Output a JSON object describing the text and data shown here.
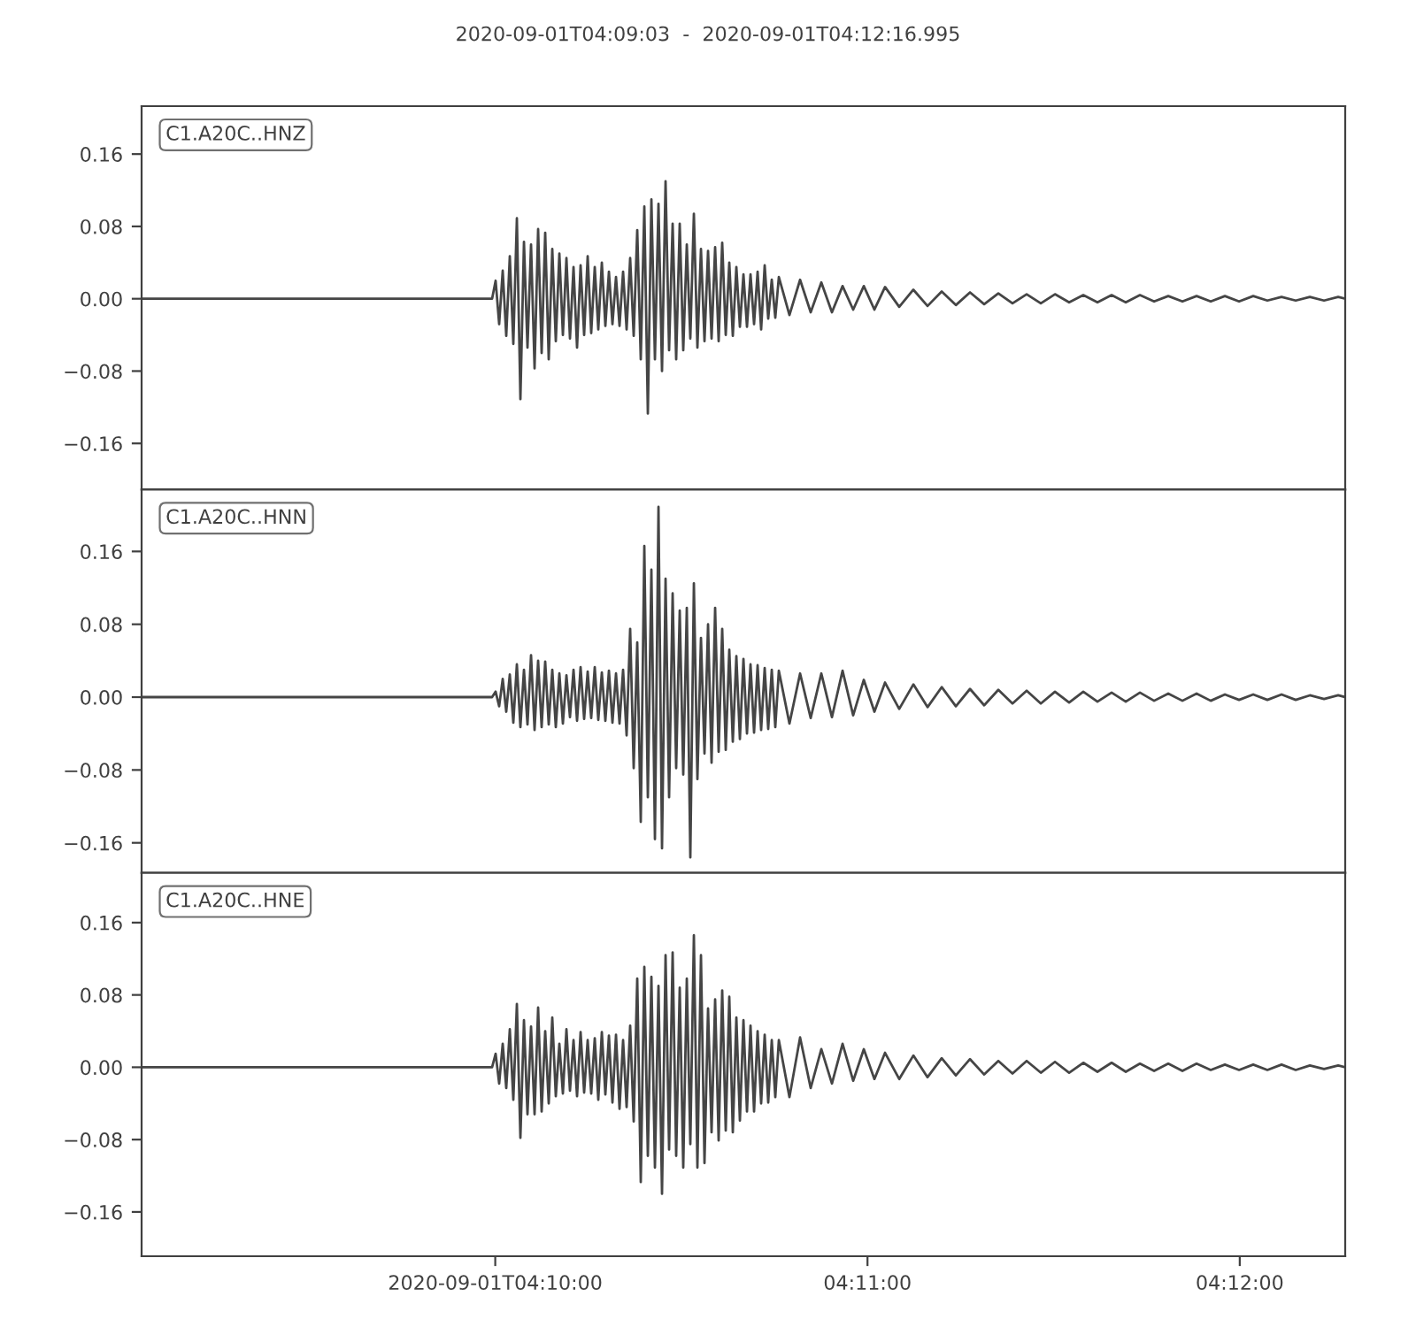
{
  "chart_data": [
    {
      "type": "line",
      "title": "2020-09-01T04:09:03  -  2020-09-01T04:12:16.995",
      "annotations": [
        "C1.A20C..HNZ"
      ],
      "tick_labels": "y",
      "xlim": [
        4.150833,
        4.204721
      ],
      "ylim": [
        -0.211,
        0.213
      ],
      "yticks": [
        {
          "value": -0.16,
          "label": "−0.16"
        },
        {
          "value": -0.08,
          "label": "−0.08"
        },
        {
          "value": 0.0,
          "label": "0.00"
        },
        {
          "value": 0.08,
          "label": "0.08"
        },
        {
          "value": 0.16,
          "label": "0.16"
        }
      ],
      "x": [
        4.150833,
        4.166525,
        4.166684,
        4.166842,
        4.167001,
        4.167159,
        4.167318,
        4.167476,
        4.167635,
        4.167793,
        4.167952,
        4.16811,
        4.168269,
        4.168427,
        4.168586,
        4.168744,
        4.168903,
        4.169061,
        4.16922,
        4.169378,
        4.169537,
        4.169695,
        4.169854,
        4.170012,
        4.170171,
        4.170329,
        4.170488,
        4.170646,
        4.170805,
        4.170963,
        4.171122,
        4.17128,
        4.171439,
        4.171597,
        4.171756,
        4.171914,
        4.172073,
        4.172231,
        4.17239,
        4.172548,
        4.172707,
        4.172865,
        4.173024,
        4.173182,
        4.173341,
        4.173499,
        4.173658,
        4.173816,
        4.173975,
        4.174133,
        4.174292,
        4.17445,
        4.174609,
        4.174767,
        4.174926,
        4.175084,
        4.175243,
        4.175401,
        4.17556,
        4.175718,
        4.175877,
        4.176035,
        4.176194,
        4.176352,
        4.176511,
        4.176669,
        4.176828,
        4.176986,
        4.177145,
        4.177303,
        4.177462,
        4.17762,
        4.177779,
        4.177937,
        4.178096,
        4.178254,
        4.178413,
        4.178571,
        4.17873,
        4.178888,
        4.179047,
        4.179205,
        4.179364,
        4.179839,
        4.180315,
        4.18079,
        4.181266,
        4.181741,
        4.182217,
        4.182692,
        4.183168,
        4.183643,
        4.184119,
        4.184753,
        4.185387,
        4.186021,
        4.186655,
        4.187289,
        4.187923,
        4.188557,
        4.189191,
        4.189825,
        4.190459,
        4.191093,
        4.191727,
        4.192361,
        4.192995,
        4.193629,
        4.194263,
        4.194897,
        4.195531,
        4.196165,
        4.196799,
        4.197433,
        4.198067,
        4.198701,
        4.199335,
        4.199969,
        4.200603,
        4.201237,
        4.201871,
        4.202505,
        4.203139,
        4.203773,
        4.204407,
        4.204721
      ],
      "series": [
        {
          "color": "#454545",
          "values": [
            0,
            0,
            0.02,
            -0.028,
            0.031,
            -0.041,
            0.047,
            -0.05,
            0.089,
            -0.111,
            0.063,
            -0.054,
            0.06,
            -0.077,
            0.077,
            -0.06,
            0.073,
            -0.067,
            0.055,
            -0.047,
            0.05,
            -0.04,
            0.045,
            -0.044,
            0.035,
            -0.054,
            0.037,
            -0.04,
            0.047,
            -0.038,
            0.035,
            -0.034,
            0.04,
            -0.03,
            0.03,
            -0.028,
            0.024,
            -0.03,
            0.03,
            -0.034,
            0.045,
            -0.041,
            0.076,
            -0.067,
            0.102,
            -0.127,
            0.11,
            -0.067,
            0.105,
            -0.08,
            0.13,
            -0.057,
            0.083,
            -0.067,
            0.083,
            -0.057,
            0.06,
            -0.044,
            0.094,
            -0.054,
            0.055,
            -0.047,
            0.053,
            -0.044,
            0.057,
            -0.047,
            0.062,
            -0.04,
            0.04,
            -0.041,
            0.035,
            -0.031,
            0.027,
            -0.031,
            0.027,
            -0.028,
            0.03,
            -0.034,
            0.037,
            -0.022,
            0.021,
            -0.021,
            0.024,
            -0.018,
            0.021,
            -0.015,
            0.018,
            -0.015,
            0.014,
            -0.012,
            0.014,
            -0.012,
            0.013,
            -0.009,
            0.01,
            -0.008,
            0.008,
            -0.007,
            0.007,
            -0.006,
            0.006,
            -0.005,
            0.005,
            -0.005,
            0.005,
            -0.004,
            0.004,
            -0.004,
            0.004,
            -0.004,
            0.004,
            -0.003,
            0.003,
            -0.003,
            0.003,
            -0.003,
            0.003,
            -0.003,
            0.003,
            -0.002,
            0.002,
            -0.002,
            0.002,
            -0.002,
            0.002,
            0
          ]
        }
      ]
    },
    {
      "type": "line",
      "annotations": [
        "C1.A20C..HNN"
      ],
      "tick_labels": "y",
      "xlim": [
        4.150833,
        4.204721
      ],
      "ylim": [
        -0.193,
        0.228
      ],
      "yticks": [
        {
          "value": -0.16,
          "label": "−0.16"
        },
        {
          "value": -0.08,
          "label": "−0.08"
        },
        {
          "value": 0.0,
          "label": "0.00"
        },
        {
          "value": 0.08,
          "label": "0.08"
        },
        {
          "value": 0.16,
          "label": "0.16"
        }
      ],
      "x": [
        4.150833,
        4.166525,
        4.166684,
        4.166842,
        4.167001,
        4.167159,
        4.167318,
        4.167476,
        4.167635,
        4.167793,
        4.167952,
        4.16811,
        4.168269,
        4.168427,
        4.168586,
        4.168744,
        4.168903,
        4.169061,
        4.16922,
        4.169378,
        4.169537,
        4.169695,
        4.169854,
        4.170012,
        4.170171,
        4.170329,
        4.170488,
        4.170646,
        4.170805,
        4.170963,
        4.171122,
        4.17128,
        4.171439,
        4.171597,
        4.171756,
        4.171914,
        4.172073,
        4.172231,
        4.17239,
        4.172548,
        4.172707,
        4.172865,
        4.173024,
        4.173182,
        4.173341,
        4.173499,
        4.173658,
        4.173816,
        4.173975,
        4.174133,
        4.174292,
        4.17445,
        4.174609,
        4.174767,
        4.174926,
        4.175084,
        4.175243,
        4.175401,
        4.17556,
        4.175718,
        4.175877,
        4.176035,
        4.176194,
        4.176352,
        4.176511,
        4.176669,
        4.176828,
        4.176986,
        4.177145,
        4.177303,
        4.177462,
        4.17762,
        4.177779,
        4.177937,
        4.178096,
        4.178254,
        4.178413,
        4.178571,
        4.17873,
        4.178888,
        4.179047,
        4.179205,
        4.179364,
        4.179839,
        4.180315,
        4.18079,
        4.181266,
        4.181741,
        4.182217,
        4.182692,
        4.183168,
        4.183643,
        4.184119,
        4.184753,
        4.185387,
        4.186021,
        4.186655,
        4.187289,
        4.187923,
        4.188557,
        4.189191,
        4.189825,
        4.190459,
        4.191093,
        4.191727,
        4.192361,
        4.192995,
        4.193629,
        4.194263,
        4.194897,
        4.195531,
        4.196165,
        4.196799,
        4.197433,
        4.198067,
        4.198701,
        4.199335,
        4.199969,
        4.200603,
        4.201237,
        4.201871,
        4.202505,
        4.203139,
        4.203773,
        4.204407,
        4.204721
      ],
      "series": [
        {
          "color": "#454545",
          "values": [
            0,
            0,
            0.006,
            -0.01,
            0.02,
            -0.016,
            0.025,
            -0.028,
            0.036,
            -0.033,
            0.03,
            -0.03,
            0.046,
            -0.036,
            0.04,
            -0.033,
            0.039,
            -0.03,
            0.03,
            -0.033,
            0.026,
            -0.029,
            0.024,
            -0.022,
            0.03,
            -0.026,
            0.033,
            -0.024,
            0.028,
            -0.023,
            0.033,
            -0.025,
            0.027,
            -0.026,
            0.029,
            -0.028,
            0.026,
            -0.029,
            0.03,
            -0.042,
            0.075,
            -0.078,
            0.06,
            -0.137,
            0.166,
            -0.11,
            0.14,
            -0.156,
            0.209,
            -0.166,
            0.13,
            -0.11,
            0.114,
            -0.078,
            0.095,
            -0.085,
            0.098,
            -0.176,
            0.125,
            -0.09,
            0.065,
            -0.062,
            0.08,
            -0.072,
            0.098,
            -0.06,
            0.075,
            -0.058,
            0.052,
            -0.049,
            0.045,
            -0.046,
            0.042,
            -0.04,
            0.036,
            -0.039,
            0.035,
            -0.036,
            0.032,
            -0.035,
            0.03,
            -0.033,
            0.029,
            -0.029,
            0.026,
            -0.023,
            0.026,
            -0.022,
            0.029,
            -0.02,
            0.019,
            -0.016,
            0.016,
            -0.013,
            0.014,
            -0.011,
            0.011,
            -0.01,
            0.009,
            -0.009,
            0.008,
            -0.007,
            0.007,
            -0.007,
            0.006,
            -0.006,
            0.006,
            -0.005,
            0.005,
            -0.005,
            0.005,
            -0.004,
            0.004,
            -0.004,
            0.004,
            -0.004,
            0.003,
            -0.003,
            0.003,
            -0.003,
            0.003,
            -0.003,
            0.002,
            -0.002,
            0.002,
            0
          ]
        }
      ]
    },
    {
      "type": "line",
      "annotations": [
        "C1.A20C..HNE"
      ],
      "xlim": [
        4.150833,
        4.204721
      ],
      "xticks": [
        {
          "value": 4.166667,
          "label": "2020-09-01T04:10:00"
        },
        {
          "value": 4.183333,
          "label": "04:11:00"
        },
        {
          "value": 4.2,
          "label": "04:12:00"
        }
      ],
      "ylim": [
        -0.209,
        0.215
      ],
      "yticks": [
        {
          "value": -0.16,
          "label": "−0.16"
        },
        {
          "value": -0.08,
          "label": "−0.08"
        },
        {
          "value": 0.0,
          "label": "0.00"
        },
        {
          "value": 0.08,
          "label": "0.08"
        },
        {
          "value": 0.16,
          "label": "0.16"
        }
      ],
      "x": [
        4.150833,
        4.166525,
        4.166684,
        4.166842,
        4.167001,
        4.167159,
        4.167318,
        4.167476,
        4.167635,
        4.167793,
        4.167952,
        4.16811,
        4.168269,
        4.168427,
        4.168586,
        4.168744,
        4.168903,
        4.169061,
        4.16922,
        4.169378,
        4.169537,
        4.169695,
        4.169854,
        4.170012,
        4.170171,
        4.170329,
        4.170488,
        4.170646,
        4.170805,
        4.170963,
        4.171122,
        4.17128,
        4.171439,
        4.171597,
        4.171756,
        4.171914,
        4.172073,
        4.172231,
        4.17239,
        4.172548,
        4.172707,
        4.172865,
        4.173024,
        4.173182,
        4.173341,
        4.173499,
        4.173658,
        4.173816,
        4.173975,
        4.174133,
        4.174292,
        4.17445,
        4.174609,
        4.174767,
        4.174926,
        4.175084,
        4.175243,
        4.175401,
        4.17556,
        4.175718,
        4.175877,
        4.176035,
        4.176194,
        4.176352,
        4.176511,
        4.176669,
        4.176828,
        4.176986,
        4.177145,
        4.177303,
        4.177462,
        4.17762,
        4.177779,
        4.177937,
        4.178096,
        4.178254,
        4.178413,
        4.178571,
        4.17873,
        4.178888,
        4.179047,
        4.179205,
        4.179364,
        4.179839,
        4.180315,
        4.18079,
        4.181266,
        4.181741,
        4.182217,
        4.182692,
        4.183168,
        4.183643,
        4.184119,
        4.184753,
        4.185387,
        4.186021,
        4.186655,
        4.187289,
        4.187923,
        4.188557,
        4.189191,
        4.189825,
        4.190459,
        4.191093,
        4.191727,
        4.192361,
        4.192995,
        4.193629,
        4.194263,
        4.194897,
        4.195531,
        4.196165,
        4.196799,
        4.197433,
        4.198067,
        4.198701,
        4.199335,
        4.199969,
        4.200603,
        4.201237,
        4.201871,
        4.202505,
        4.203139,
        4.203773,
        4.204407,
        4.204721
      ],
      "series": [
        {
          "color": "#454545",
          "values": [
            0,
            0,
            0.015,
            -0.018,
            0.026,
            -0.023,
            0.042,
            -0.036,
            0.07,
            -0.078,
            0.052,
            -0.052,
            0.045,
            -0.052,
            0.066,
            -0.049,
            0.04,
            -0.04,
            0.055,
            -0.032,
            0.026,
            -0.029,
            0.042,
            -0.026,
            0.03,
            -0.032,
            0.039,
            -0.028,
            0.03,
            -0.029,
            0.032,
            -0.036,
            0.039,
            -0.03,
            0.035,
            -0.039,
            0.036,
            -0.046,
            0.03,
            -0.044,
            0.046,
            -0.06,
            0.098,
            -0.127,
            0.111,
            -0.098,
            0.1,
            -0.111,
            0.09,
            -0.14,
            0.124,
            -0.091,
            0.127,
            -0.098,
            0.088,
            -0.111,
            0.098,
            -0.085,
            0.146,
            -0.111,
            0.124,
            -0.106,
            0.065,
            -0.072,
            0.075,
            -0.081,
            0.085,
            -0.07,
            0.078,
            -0.072,
            0.055,
            -0.059,
            0.052,
            -0.049,
            0.046,
            -0.049,
            0.04,
            -0.04,
            0.036,
            -0.039,
            0.03,
            -0.033,
            0.03,
            -0.033,
            0.033,
            -0.023,
            0.02,
            -0.018,
            0.026,
            -0.015,
            0.02,
            -0.013,
            0.016,
            -0.013,
            0.013,
            -0.011,
            0.01,
            -0.009,
            0.009,
            -0.008,
            0.007,
            -0.007,
            0.007,
            -0.006,
            0.006,
            -0.006,
            0.005,
            -0.005,
            0.005,
            -0.005,
            0.004,
            -0.004,
            0.004,
            -0.004,
            0.004,
            -0.003,
            0.003,
            -0.003,
            0.003,
            -0.003,
            0.003,
            -0.003,
            0.002,
            -0.002,
            0.002,
            0
          ]
        }
      ]
    }
  ]
}
